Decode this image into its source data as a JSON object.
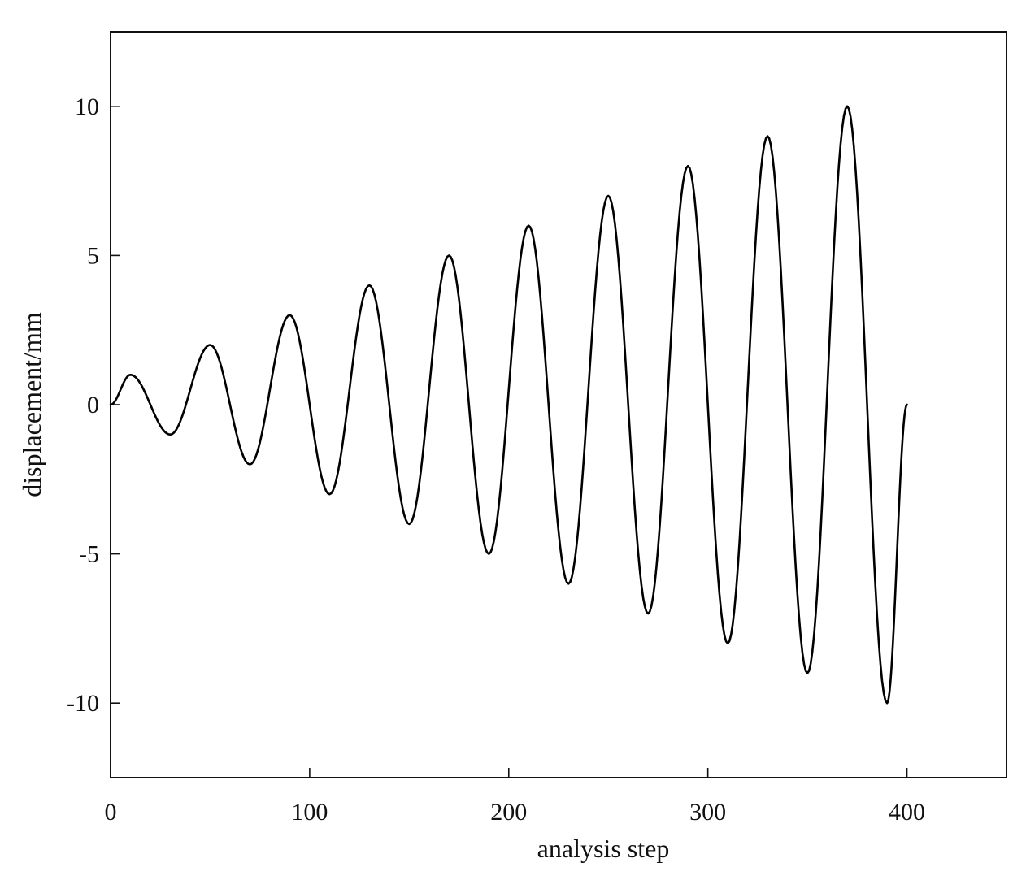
{
  "chart_data": {
    "type": "line",
    "title": "",
    "xlabel": "analysis step",
    "ylabel": "displacement/mm",
    "xlim": [
      0,
      450
    ],
    "ylim": [
      -12.5,
      12.5
    ],
    "x_ticks": [
      0,
      100,
      200,
      300,
      400
    ],
    "y_ticks": [
      -10,
      -5,
      0,
      5,
      10
    ],
    "x_tick_labels": [
      "0",
      "100",
      "200",
      "300",
      "400"
    ],
    "y_tick_labels": [
      "-10",
      "-5",
      "0",
      "5",
      "10"
    ],
    "grid": false,
    "legend": "none",
    "line_color": "#000000",
    "series": [
      {
        "x": [
          0,
          10,
          30,
          50,
          70,
          90,
          110,
          130,
          150,
          170,
          190,
          210,
          230,
          250,
          270,
          290,
          310,
          330,
          350,
          370,
          390,
          400
        ],
        "values": [
          0,
          1,
          -1,
          2,
          -2,
          3,
          -3,
          4,
          -4,
          5,
          -5,
          6,
          -6,
          7,
          -7,
          8,
          -8,
          9,
          -9,
          10,
          -10,
          0
        ]
      }
    ]
  }
}
